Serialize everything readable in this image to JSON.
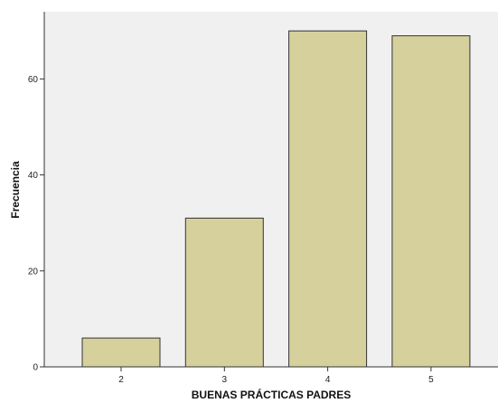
{
  "chart_data": {
    "type": "bar",
    "categories": [
      "2",
      "3",
      "4",
      "5"
    ],
    "values": [
      6,
      31,
      70,
      69
    ],
    "title": "",
    "xlabel": "BUENAS PRÁCTICAS PADRES",
    "ylabel": "Frecuencia",
    "ylim": [
      0,
      74
    ],
    "yticks": [
      0,
      20,
      40,
      60
    ],
    "grid": false,
    "legend": "none",
    "colors": {
      "plot_background": "#f0f0f0",
      "bar_fill": "#d6d09c",
      "bar_stroke": "#333333",
      "axis": "#333333"
    }
  }
}
